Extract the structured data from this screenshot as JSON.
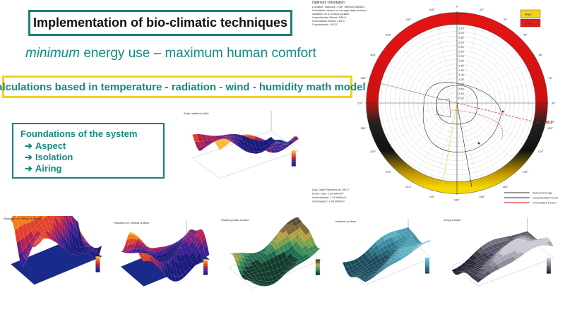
{
  "header": {
    "title": "Implementation of bio-climatic techniques",
    "subtitle_italic": "minimum",
    "subtitle_rest": " energy use – maximum human comfort"
  },
  "calc_box": {
    "text": "Calculations based in temperature - radiation - wind - humidity math model"
  },
  "foundations": {
    "heading": "Foundations of the system",
    "items": [
      "Aspect",
      "Isolation",
      "Airing"
    ]
  },
  "polar_chart": {
    "title": "Optimum Orientation",
    "info_lines": [
      "Location: Valencia - ESP, WMO#=082840",
      "Orientation based on average daily incident",
      "radiation on a vertical surface.",
      "Underheated Stress: 185.8",
      "Overheated Stress: 183.3",
      "Compromise: 190.0°"
    ],
    "radiation_unit": "kWh/m²",
    "ring_labels": [
      "3.20",
      "3.00",
      "2.80",
      "2.60",
      "2.40",
      "2.20",
      "2.00",
      "1.80",
      "1.60",
      "1.40",
      "1.20",
      "1.00",
      "0.80",
      "0.60",
      "0.40",
      "0.20"
    ],
    "angle_labels": [
      "N",
      "15°",
      "30°",
      "45°",
      "60°",
      "75°",
      "90°",
      "105°",
      "120°",
      "135°",
      "150°",
      "165°",
      "180°",
      "195°",
      "210°",
      "225°",
      "240°",
      "255°",
      "270°",
      "285°",
      "300°",
      "315°",
      "330°",
      "345°"
    ],
    "marker_label": "190.0°",
    "legend_box": {
      "major": "Major",
      "poor": "Poor",
      "major_color": "#f2d21a",
      "poor_color": "#e11b1b"
    },
    "bottom_info": [
      "Avg. Daily Radiation at 190.0°",
      "Entire Year: 1.36 kWh/m²",
      "Underheated: 2.24 kWh/m²",
      "Overheated: 1.46 kWh/m²"
    ],
    "line_legend": [
      "Annual Average",
      "Underheated Period",
      "Overheated Period"
    ],
    "colors": {
      "ring_red": "#e31414",
      "ring_yellow": "#f5d800",
      "ring_black": "#111111"
    }
  },
  "surface_plots": [
    {
      "id": "top",
      "caption": "Solar radiation (Wh)",
      "palette": "fire"
    },
    {
      "id": "p1",
      "caption": "Radiation on vertical surface",
      "palette": "fire"
    },
    {
      "id": "p2",
      "caption": "Radiation on vertical surface",
      "palette": "fire"
    },
    {
      "id": "p3",
      "caption": "Shading mask surface",
      "palette": "earth"
    },
    {
      "id": "p4",
      "caption": "Isolation surface",
      "palette": "teal"
    },
    {
      "id": "p5",
      "caption": "Airing surface",
      "palette": "grey"
    }
  ]
}
